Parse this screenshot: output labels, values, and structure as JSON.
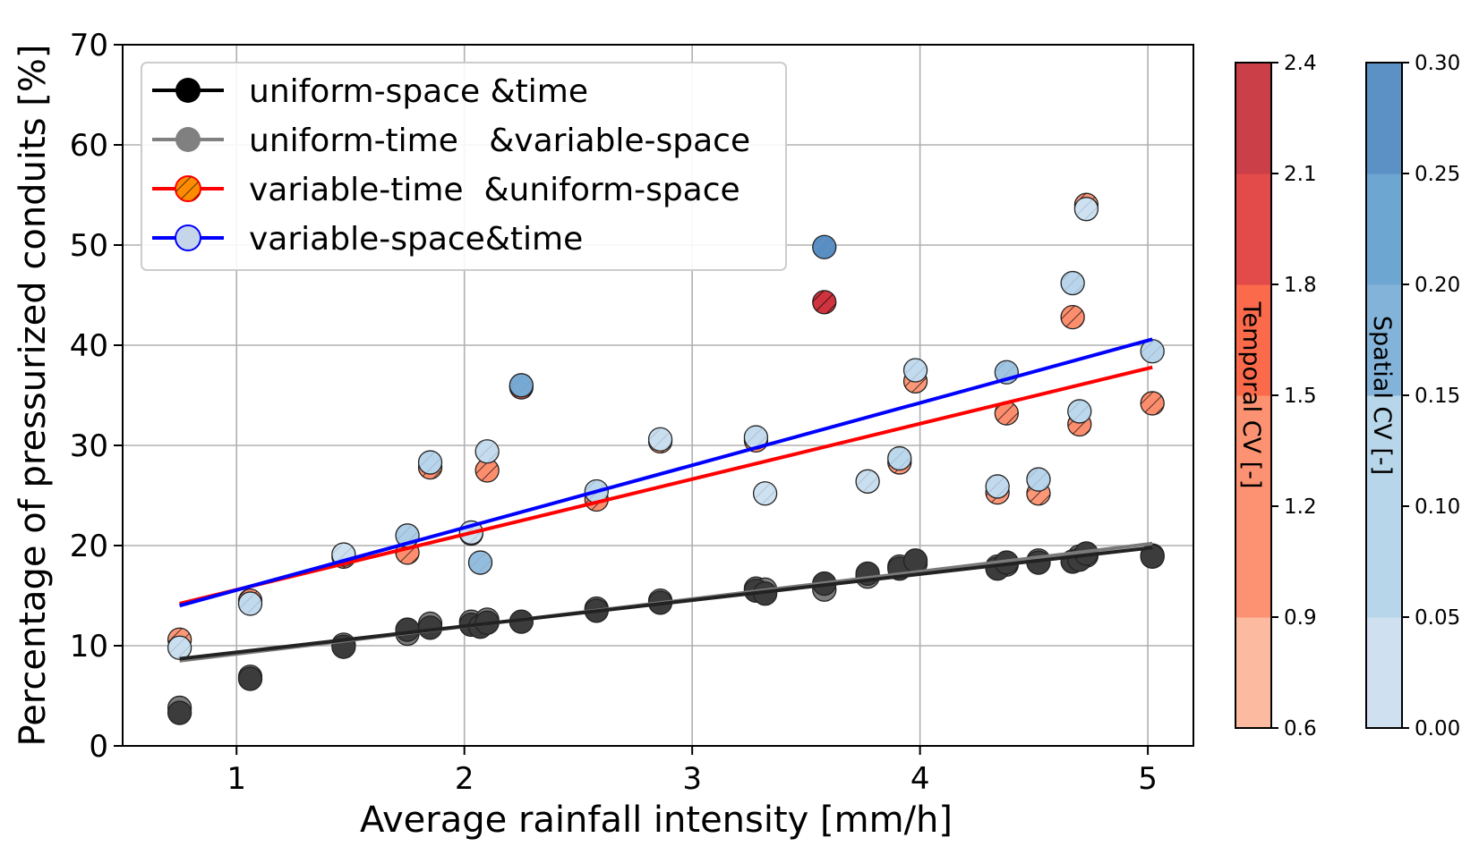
{
  "chart_data": {
    "type": "scatter",
    "xlabel": "Average rainfall intensity [mm/h]",
    "ylabel": "Percentage of pressurized conduits [%]",
    "xlim": [
      0.5,
      5.2
    ],
    "ylim": [
      0,
      70
    ],
    "x_ticks": [
      1,
      2,
      3,
      4,
      5
    ],
    "y_ticks": [
      0,
      10,
      20,
      30,
      40,
      50,
      60,
      70
    ],
    "grid": true,
    "legend_position": "top-left",
    "legend": [
      {
        "label": "uniform-space &time",
        "color": "#000000",
        "marker_fill": "#000000",
        "hatch": false
      },
      {
        "label": "uniform-time   &variable-space",
        "color": "#808080",
        "marker_fill": "#808080",
        "hatch": false
      },
      {
        "label": "variable-time  &uniform-space",
        "color": "#ff0000",
        "marker_fill": "#ff8c00",
        "hatch": true
      },
      {
        "label": "variable-space&time",
        "color": "#0000ff",
        "marker_fill": "#c6d6ea",
        "hatch": false
      }
    ],
    "series": [
      {
        "name": "uniform-space &time",
        "color": "#333333",
        "points": [
          [
            0.75,
            3.3
          ],
          [
            1.06,
            6.7
          ],
          [
            1.47,
            9.9
          ],
          [
            1.75,
            11.6
          ],
          [
            1.85,
            11.8
          ],
          [
            2.03,
            12.1
          ],
          [
            2.07,
            11.9
          ],
          [
            2.1,
            12.3
          ],
          [
            2.25,
            12.4
          ],
          [
            2.58,
            13.5
          ],
          [
            2.86,
            14.3
          ],
          [
            3.28,
            15.5
          ],
          [
            3.32,
            15.2
          ],
          [
            3.58,
            16.2
          ],
          [
            3.77,
            17.2
          ],
          [
            3.91,
            17.7
          ],
          [
            3.98,
            18.5
          ],
          [
            4.34,
            17.7
          ],
          [
            4.38,
            18.3
          ],
          [
            4.52,
            18.3
          ],
          [
            4.67,
            18.4
          ],
          [
            4.7,
            18.6
          ],
          [
            4.73,
            19.2
          ],
          [
            5.02,
            18.9
          ]
        ],
        "fit": [
          [
            0.75,
            8.7
          ],
          [
            5.02,
            19.8
          ]
        ]
      },
      {
        "name": "uniform-time   &variable-space",
        "color": "#5a5a5a",
        "points": [
          [
            0.75,
            3.8
          ],
          [
            1.06,
            6.9
          ],
          [
            1.47,
            10.1
          ],
          [
            1.75,
            11.2
          ],
          [
            1.85,
            12.2
          ],
          [
            2.03,
            12.4
          ],
          [
            2.1,
            12.6
          ],
          [
            2.58,
            13.7
          ],
          [
            2.86,
            14.5
          ],
          [
            3.28,
            15.7
          ],
          [
            3.32,
            15.6
          ],
          [
            3.58,
            15.6
          ],
          [
            3.77,
            16.9
          ],
          [
            3.91,
            17.9
          ],
          [
            3.98,
            18.2
          ],
          [
            4.34,
            17.9
          ],
          [
            4.38,
            18.1
          ],
          [
            4.52,
            18.5
          ],
          [
            4.7,
            18.9
          ],
          [
            4.73,
            19.0
          ],
          [
            5.02,
            19.0
          ]
        ],
        "fit": [
          [
            0.75,
            8.5
          ],
          [
            5.02,
            20.2
          ]
        ]
      },
      {
        "name": "variable-time  &uniform-space",
        "color": "#ff0000",
        "hatch": true,
        "colorbar": "Temporal CV [-]",
        "points": [
          {
            "x": 0.75,
            "y": 10.6,
            "cv": 1.0
          },
          {
            "x": 1.06,
            "y": 14.5,
            "cv": 1.1
          },
          {
            "x": 1.47,
            "y": 18.9,
            "cv": 1.1
          },
          {
            "x": 1.75,
            "y": 19.3,
            "cv": 1.1
          },
          {
            "x": 1.85,
            "y": 27.8,
            "cv": 1.1
          },
          {
            "x": 2.03,
            "y": 21.2,
            "cv": 1.0
          },
          {
            "x": 2.1,
            "y": 27.5,
            "cv": 1.1
          },
          {
            "x": 2.25,
            "y": 35.8,
            "cv": 1.7
          },
          {
            "x": 2.58,
            "y": 24.6,
            "cv": 1.1
          },
          {
            "x": 2.86,
            "y": 30.4,
            "cv": 1.0
          },
          {
            "x": 3.28,
            "y": 30.5,
            "cv": 1.1
          },
          {
            "x": 3.58,
            "y": 44.3,
            "cv": 2.3
          },
          {
            "x": 3.98,
            "y": 36.4,
            "cv": 1.0
          },
          {
            "x": 3.91,
            "y": 28.3,
            "cv": 1.0
          },
          {
            "x": 4.34,
            "y": 25.3,
            "cv": 1.0
          },
          {
            "x": 4.38,
            "y": 33.2,
            "cv": 1.1
          },
          {
            "x": 4.52,
            "y": 25.2,
            "cv": 1.0
          },
          {
            "x": 4.67,
            "y": 42.8,
            "cv": 1.1
          },
          {
            "x": 4.7,
            "y": 32.1,
            "cv": 1.1
          },
          {
            "x": 4.73,
            "y": 54.0,
            "cv": 1.0
          },
          {
            "x": 5.02,
            "y": 34.2,
            "cv": 1.1
          }
        ],
        "fit": [
          [
            0.75,
            14.2
          ],
          [
            5.02,
            37.8
          ]
        ]
      },
      {
        "name": "variable-space&time",
        "color": "#0000ff",
        "colorbar": "Spatial CV [-]",
        "points": [
          {
            "x": 0.75,
            "y": 9.8,
            "cv": 0.03
          },
          {
            "x": 1.06,
            "y": 14.2,
            "cv": 0.05
          },
          {
            "x": 1.47,
            "y": 19.1,
            "cv": 0.02
          },
          {
            "x": 1.75,
            "y": 21.0,
            "cv": 0.09
          },
          {
            "x": 1.85,
            "y": 28.3,
            "cv": 0.07
          },
          {
            "x": 2.03,
            "y": 21.3,
            "cv": 0.02
          },
          {
            "x": 2.07,
            "y": 18.3,
            "cv": 0.13
          },
          {
            "x": 2.1,
            "y": 29.4,
            "cv": 0.04
          },
          {
            "x": 2.25,
            "y": 36.0,
            "cv": 0.18
          },
          {
            "x": 2.58,
            "y": 25.4,
            "cv": 0.06
          },
          {
            "x": 2.86,
            "y": 30.6,
            "cv": 0.03
          },
          {
            "x": 3.28,
            "y": 30.8,
            "cv": 0.04
          },
          {
            "x": 3.32,
            "y": 25.2,
            "cv": 0.02
          },
          {
            "x": 3.58,
            "y": 49.8,
            "cv": 0.25
          },
          {
            "x": 3.77,
            "y": 26.4,
            "cv": 0.03
          },
          {
            "x": 3.91,
            "y": 28.7,
            "cv": 0.06
          },
          {
            "x": 3.98,
            "y": 37.5,
            "cv": 0.05
          },
          {
            "x": 4.34,
            "y": 25.9,
            "cv": 0.05
          },
          {
            "x": 4.38,
            "y": 37.3,
            "cv": 0.11
          },
          {
            "x": 4.52,
            "y": 26.6,
            "cv": 0.07
          },
          {
            "x": 4.67,
            "y": 46.2,
            "cv": 0.07
          },
          {
            "x": 4.7,
            "y": 33.4,
            "cv": 0.06
          },
          {
            "x": 4.73,
            "y": 53.6,
            "cv": 0.02
          },
          {
            "x": 5.02,
            "y": 39.4,
            "cv": 0.07
          }
        ],
        "fit": [
          [
            0.75,
            14.0
          ],
          [
            5.02,
            40.6
          ]
        ]
      }
    ],
    "colorbars": [
      {
        "name": "temporal",
        "label": "Temporal CV [-]",
        "range": [
          0.6,
          2.4
        ],
        "ticks": [
          "0.6",
          "0.9",
          "1.2",
          "1.5",
          "1.8",
          "2.1",
          "2.4"
        ],
        "bands": [
          "#fcbba1",
          "#fc9272",
          "#fc9272",
          "#fb6a4a",
          "#e34a4a",
          "#cb4048"
        ]
      },
      {
        "name": "spatial",
        "label": "Spatial CV [-]",
        "range": [
          0.0,
          0.3
        ],
        "ticks": [
          "0.00",
          "0.05",
          "0.10",
          "0.15",
          "0.20",
          "0.25",
          "0.30"
        ],
        "bands": [
          "#cfe1f0",
          "#b8d6ea",
          "#b8d6ea",
          "#83b3d9",
          "#6ea6d2",
          "#5b91c4"
        ]
      }
    ]
  }
}
